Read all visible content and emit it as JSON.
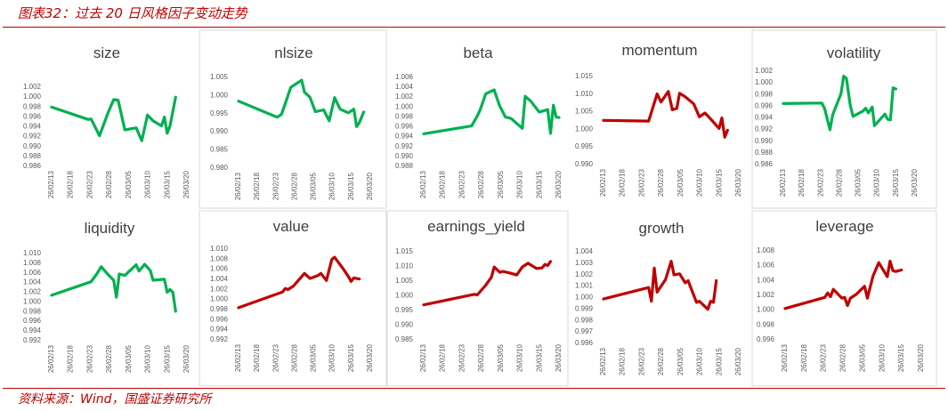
{
  "page_title": "图表32：过去 20 日风格因子变动走势",
  "footer": "资料来源：Wind，国盛证券研究所",
  "colors": {
    "accent": "#C00000",
    "up": "#00B050",
    "down": "#C00000"
  },
  "chart_data": [
    {
      "type": "line",
      "title": "size",
      "color": "#00B050",
      "yticks": [
        "1.002",
        "1.000",
        "0.998",
        "0.996",
        "0.994",
        "0.992",
        "0.990",
        "0.988",
        "0.986"
      ],
      "ylim": [
        0.986,
        1.002
      ],
      "x": [
        "26/02/13",
        "26/02/18",
        "26/02/23",
        "26/02/28",
        "26/03/05",
        "26/03/10",
        "26/03/15",
        "26/03/20"
      ],
      "series": [
        {
          "values": [
            [
              0,
              0.9978
            ],
            [
              6.5,
              0.9953
            ],
            [
              7,
              0.9954
            ],
            [
              8.5,
              0.992
            ],
            [
              10,
              0.9966
            ],
            [
              11,
              0.9993
            ],
            [
              11.8,
              0.9992
            ],
            [
              13,
              0.9932
            ],
            [
              15,
              0.9936
            ],
            [
              16,
              0.991
            ],
            [
              17,
              0.9962
            ],
            [
              18,
              0.995
            ],
            [
              19.5,
              0.994
            ],
            [
              20,
              0.9958
            ],
            [
              20.5,
              0.9925
            ],
            [
              21,
              0.994
            ],
            [
              22,
              0.9998
            ]
          ]
        }
      ]
    },
    {
      "type": "line",
      "title": "nlsize",
      "color": "#00B050",
      "yticks": [
        "1.005",
        "1.000",
        "0.995",
        "0.990",
        "0.985",
        "0.980"
      ],
      "ylim": [
        0.98,
        1.005
      ],
      "x": [
        "26/02/13",
        "26/02/18",
        "26/02/23",
        "26/02/28",
        "26/03/05",
        "26/03/10",
        "26/03/15",
        "26/03/20"
      ],
      "series": [
        {
          "values": [
            [
              0,
              0.9982
            ],
            [
              7,
              0.9938
            ],
            [
              7.8,
              0.9945
            ],
            [
              8.5,
              0.9975
            ],
            [
              9.5,
              1.002
            ],
            [
              11.5,
              1.004
            ],
            [
              12,
              1.0007
            ],
            [
              13,
              0.9993
            ],
            [
              14,
              0.9953
            ],
            [
              15.5,
              0.9958
            ],
            [
              16.5,
              0.9928
            ],
            [
              17.5,
              0.9992
            ],
            [
              18.5,
              0.996
            ],
            [
              20,
              0.995
            ],
            [
              21,
              0.996
            ],
            [
              21.5,
              0.9912
            ],
            [
              22,
              0.9923
            ],
            [
              22.8,
              0.9952
            ]
          ]
        }
      ]
    },
    {
      "type": "line",
      "title": "beta",
      "color": "#00B050",
      "yticks": [
        "1.006",
        "1.004",
        "1.002",
        "1.000",
        "0.998",
        "0.996",
        "0.994",
        "0.992",
        "0.990",
        "0.988"
      ],
      "ylim": [
        0.988,
        1.006
      ],
      "x": [
        "26/02/13",
        "26/02/18",
        "26/02/23",
        "26/02/28",
        "26/03/05",
        "26/03/10",
        "26/03/15",
        "26/03/20"
      ],
      "series": [
        {
          "values": [
            [
              0,
              0.9944
            ],
            [
              8.5,
              0.996
            ],
            [
              9.5,
              0.998
            ],
            [
              10,
              0.9992
            ],
            [
              11,
              1.0025
            ],
            [
              12.5,
              1.0033
            ],
            [
              13,
              1.0016
            ],
            [
              13.5,
              1.0
            ],
            [
              14.5,
              0.9978
            ],
            [
              15.5,
              0.9975
            ],
            [
              17.5,
              0.9955
            ],
            [
              18,
              1.002
            ],
            [
              19,
              1.001
            ],
            [
              20.5,
              0.9988
            ],
            [
              22,
              0.9993
            ],
            [
              22.5,
              0.9945
            ],
            [
              23,
              1.0002
            ],
            [
              23.5,
              0.9978
            ],
            [
              24,
              0.9977
            ]
          ]
        }
      ]
    },
    {
      "type": "line",
      "title": "momentum",
      "color": "#C00000",
      "yticks": [
        "1.015",
        "1.010",
        "1.005",
        "1.000",
        "0.995",
        "0.990"
      ],
      "ylim": [
        0.99,
        1.015
      ],
      "x": [
        "26/02/13",
        "26/02/18",
        "26/02/23",
        "26/02/28",
        "26/03/05",
        "26/03/10",
        "26/03/15",
        "26/03/20"
      ],
      "series": [
        {
          "values": [
            [
              0,
              1.0023
            ],
            [
              8,
              1.0021
            ],
            [
              9.5,
              1.0098
            ],
            [
              10.2,
              1.0075
            ],
            [
              11.5,
              1.0105
            ],
            [
              12.2,
              1.0053
            ],
            [
              13,
              1.0057
            ],
            [
              13.5,
              1.01
            ],
            [
              14.5,
              1.009
            ],
            [
              16,
              1.007
            ],
            [
              17,
              1.0033
            ],
            [
              18,
              1.0044
            ],
            [
              19,
              1.0027
            ],
            [
              20.5,
              1.0
            ],
            [
              21,
              1.003
            ],
            [
              21.5,
              0.9975
            ],
            [
              22,
              0.9995
            ]
          ]
        }
      ]
    },
    {
      "type": "line",
      "title": "volatility",
      "color": "#00B050",
      "yticks": [
        "1.002",
        "1.000",
        "0.998",
        "0.996",
        "0.994",
        "0.992",
        "0.990",
        "0.988",
        "0.986"
      ],
      "ylim": [
        0.986,
        1.002
      ],
      "x": [
        "26/02/13",
        "26/02/18",
        "26/02/23",
        "26/02/28",
        "26/03/05",
        "26/03/10",
        "26/03/15",
        "26/03/20"
      ],
      "series": [
        {
          "values": [
            [
              0,
              0.9963
            ],
            [
              7,
              0.9964
            ],
            [
              7.5,
              0.9955
            ],
            [
              8.5,
              0.9918
            ],
            [
              9,
              0.9944
            ],
            [
              10.5,
              0.998
            ],
            [
              11,
              1.001
            ],
            [
              11.5,
              1.0006
            ],
            [
              12.2,
              0.996
            ],
            [
              12.7,
              0.9941
            ],
            [
              14.5,
              0.995
            ],
            [
              15,
              0.9955
            ],
            [
              15.5,
              0.9947
            ],
            [
              16.2,
              0.9957
            ],
            [
              16.6,
              0.9925
            ],
            [
              18.5,
              0.9945
            ],
            [
              19,
              0.9936
            ],
            [
              19.5,
              0.9935
            ],
            [
              20,
              0.999
            ],
            [
              20.5,
              0.9988
            ]
          ]
        }
      ]
    },
    {
      "type": "line",
      "title": "liquidity",
      "color": "#00B050",
      "yticks": [
        "1.010",
        "1.008",
        "1.006",
        "1.004",
        "1.002",
        "1.000",
        "0.998",
        "0.996",
        "0.994",
        "0.992"
      ],
      "ylim": [
        0.992,
        1.01
      ],
      "x": [
        "26/02/13",
        "26/02/18",
        "26/02/23",
        "26/02/28",
        "26/03/05",
        "26/03/10",
        "26/03/15",
        "26/03/20"
      ],
      "series": [
        {
          "values": [
            [
              0,
              1.0012
            ],
            [
              7,
              1.004
            ],
            [
              8,
              1.0056
            ],
            [
              8.8,
              1.0071
            ],
            [
              10,
              1.0055
            ],
            [
              11,
              1.0043
            ],
            [
              11.5,
              1.0008
            ],
            [
              12,
              1.0056
            ],
            [
              13,
              1.0053
            ],
            [
              15,
              1.0075
            ],
            [
              15.5,
              1.0062
            ],
            [
              16.5,
              1.0076
            ],
            [
              17.5,
              1.0063
            ],
            [
              18,
              1.0043
            ],
            [
              20,
              1.0045
            ],
            [
              20.5,
              1.0018
            ],
            [
              21,
              1.0024
            ],
            [
              21.5,
              1.0018
            ],
            [
              22,
              0.9979
            ]
          ]
        }
      ]
    },
    {
      "type": "line",
      "title": "value",
      "color": "#C00000",
      "yticks": [
        "1.010",
        "1.008",
        "1.006",
        "1.004",
        "1.002",
        "1.000",
        "0.998",
        "0.996",
        "0.994",
        "0.992"
      ],
      "ylim": [
        0.992,
        1.01
      ],
      "x": [
        "26/02/13",
        "26/02/18",
        "26/02/23",
        "26/02/28",
        "26/03/05",
        "26/03/10",
        "26/03/15",
        "26/03/20"
      ],
      "series": [
        {
          "values": [
            [
              0,
              0.9982
            ],
            [
              8,
              1.0013
            ],
            [
              8.5,
              1.002
            ],
            [
              9,
              1.0018
            ],
            [
              10,
              1.0025
            ],
            [
              12,
              1.005
            ],
            [
              13,
              1.004
            ],
            [
              14.5,
              1.0046
            ],
            [
              15,
              1.005
            ],
            [
              16,
              1.0036
            ],
            [
              17,
              1.0078
            ],
            [
              17.5,
              1.0082
            ],
            [
              19,
              1.006
            ],
            [
              20,
              1.0044
            ],
            [
              20.5,
              1.0034
            ],
            [
              21,
              1.0041
            ],
            [
              22,
              1.0039
            ]
          ]
        }
      ]
    },
    {
      "type": "line",
      "title": "earnings_yield",
      "color": "#C00000",
      "yticks": [
        "1.015",
        "1.010",
        "1.005",
        "1.000",
        "0.995",
        "0.990",
        "0.985"
      ],
      "ylim": [
        0.985,
        1.015
      ],
      "x": [
        "26/02/13",
        "26/02/18",
        "26/02/23",
        "26/02/28",
        "26/03/05",
        "26/03/10",
        "26/03/15",
        "26/03/20"
      ],
      "series": [
        {
          "values": [
            [
              0,
              0.9966
            ],
            [
              9,
              1.0002
            ],
            [
              9.5,
              1.0
            ],
            [
              11,
              1.0033
            ],
            [
              12,
              1.006
            ],
            [
              12.5,
              1.0095
            ],
            [
              13.5,
              1.0077
            ],
            [
              14,
              1.008
            ],
            [
              15,
              1.0076
            ],
            [
              16.5,
              1.0068
            ],
            [
              17.5,
              1.0095
            ],
            [
              18.5,
              1.0108
            ],
            [
              20,
              1.009
            ],
            [
              21,
              1.0092
            ],
            [
              21.5,
              1.0104
            ],
            [
              22,
              1.01
            ],
            [
              22.5,
              1.0114
            ]
          ]
        }
      ]
    },
    {
      "type": "line",
      "title": "growth",
      "color": "#C00000",
      "yticks": [
        "1.004",
        "1.003",
        "1.002",
        "1.001",
        "1.000",
        "0.999",
        "0.998",
        "0.997",
        "0.996"
      ],
      "ylim": [
        0.996,
        1.004
      ],
      "x": [
        "26/02/13",
        "26/02/18",
        "26/02/23",
        "26/02/28",
        "26/03/05",
        "26/03/10",
        "26/03/15",
        "26/03/20"
      ],
      "series": [
        {
          "values": [
            [
              0,
              0.9998
            ],
            [
              8,
              1.0008
            ],
            [
              8.5,
              0.9996
            ],
            [
              9,
              1.0025
            ],
            [
              9.5,
              1.0004
            ],
            [
              11,
              1.0015
            ],
            [
              12,
              1.0031
            ],
            [
              12.5,
              1.0019
            ],
            [
              13.5,
              1.002
            ],
            [
              14.5,
              1.0012
            ],
            [
              15,
              1.0014
            ],
            [
              16.5,
              0.9995
            ],
            [
              17,
              0.9996
            ],
            [
              18.5,
              0.9989
            ],
            [
              19,
              0.9996
            ],
            [
              19.5,
              0.9995
            ],
            [
              20,
              1.0014
            ]
          ]
        }
      ]
    },
    {
      "type": "line",
      "title": "leverage",
      "color": "#C00000",
      "yticks": [
        "1.008",
        "1.006",
        "1.004",
        "1.002",
        "1.000",
        "0.998",
        "0.996"
      ],
      "ylim": [
        0.996,
        1.008
      ],
      "x": [
        "26/02/13",
        "26/02/18",
        "26/02/23",
        "26/02/28",
        "26/03/05",
        "26/03/10",
        "26/03/15",
        "26/03/20"
      ],
      "series": [
        {
          "values": [
            [
              0,
              1.0001
            ],
            [
              7,
              1.0016
            ],
            [
              7.5,
              1.0022
            ],
            [
              8,
              1.0017
            ],
            [
              8.5,
              1.0027
            ],
            [
              10,
              1.0015
            ],
            [
              10.5,
              1.0016
            ],
            [
              11,
              1.0005
            ],
            [
              11.5,
              1.0015
            ],
            [
              12.5,
              1.002
            ],
            [
              14,
              1.0031
            ],
            [
              14.5,
              1.0015
            ],
            [
              15.5,
              1.0045
            ],
            [
              16.5,
              1.0063
            ],
            [
              18,
              1.0044
            ],
            [
              18.5,
              1.0065
            ],
            [
              19,
              1.0052
            ],
            [
              19.5,
              1.0051
            ],
            [
              20.5,
              1.0053
            ]
          ]
        }
      ]
    }
  ]
}
